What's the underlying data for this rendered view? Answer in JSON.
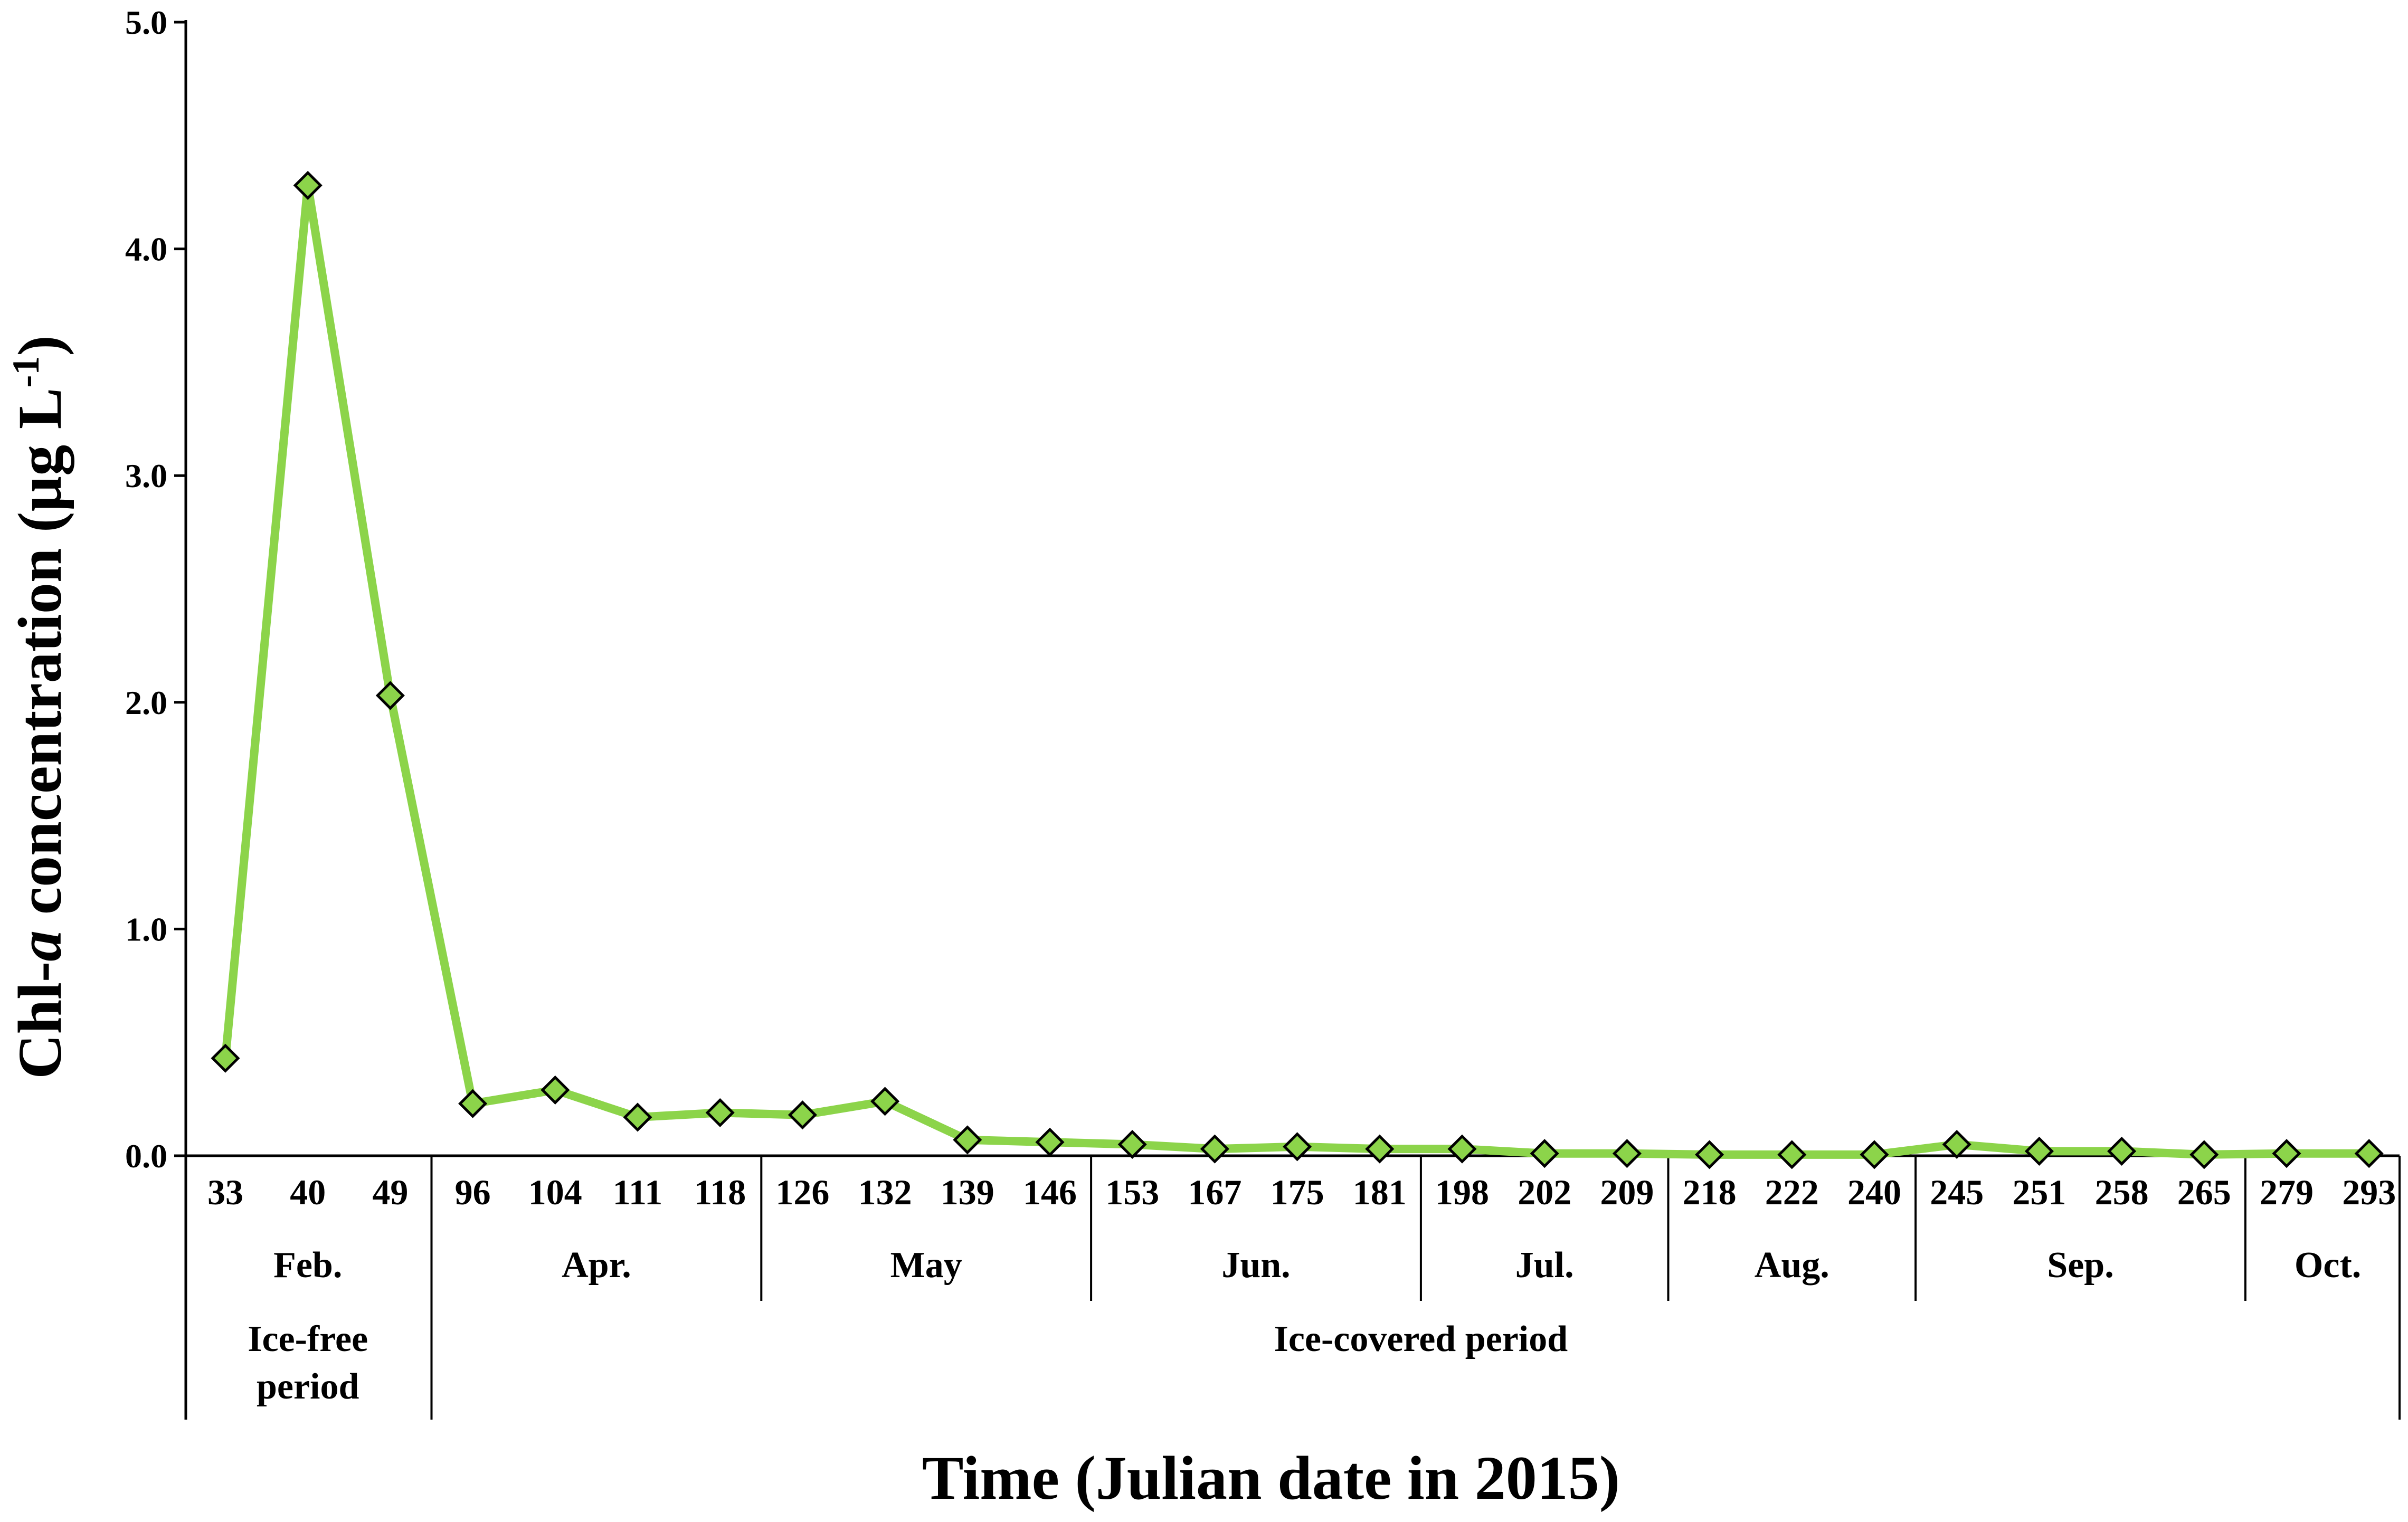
{
  "chart_data": {
    "type": "line",
    "xlabel": "Time (Julian date in 2015)",
    "ylabel": {
      "prefix": "Chl-",
      "italic": "a",
      "middle": " concentration (µg L",
      "superscript": "-1",
      "suffix": ")"
    },
    "ylim": [
      0,
      5.0
    ],
    "yticks": [
      "0.0",
      "1.0",
      "2.0",
      "3.0",
      "4.0",
      "5.0"
    ],
    "grid": false,
    "legend": "none",
    "line_color": "#8cd44a",
    "marker_color": "#8cd44a",
    "marker_edge_color": "#000000",
    "marker": "diamond",
    "categories": [
      "33",
      "40",
      "49",
      "96",
      "104",
      "111",
      "118",
      "126",
      "132",
      "139",
      "146",
      "153",
      "167",
      "175",
      "181",
      "198",
      "202",
      "209",
      "218",
      "222",
      "240",
      "245",
      "251",
      "258",
      "265",
      "279",
      "293"
    ],
    "values": [
      0.43,
      4.28,
      2.03,
      0.23,
      0.29,
      0.17,
      0.19,
      0.18,
      0.24,
      0.07,
      0.06,
      0.05,
      0.03,
      0.04,
      0.03,
      0.03,
      0.01,
      0.01,
      0.005,
      0.005,
      0.005,
      0.05,
      0.02,
      0.02,
      0.005,
      0.01,
      0.01
    ],
    "months": [
      {
        "label": "Feb.",
        "start": 0,
        "end": 2
      },
      {
        "label": "Apr.",
        "start": 3,
        "end": 6
      },
      {
        "label": "May",
        "start": 7,
        "end": 10
      },
      {
        "label": "Jun.",
        "start": 11,
        "end": 14
      },
      {
        "label": "Jul.",
        "start": 15,
        "end": 17
      },
      {
        "label": "Aug.",
        "start": 18,
        "end": 20
      },
      {
        "label": "Sep.",
        "start": 21,
        "end": 24
      },
      {
        "label": "Oct.",
        "start": 25,
        "end": 26
      }
    ],
    "periods": [
      {
        "lines": [
          "Ice-free",
          "period"
        ],
        "start": 0,
        "end": 2
      },
      {
        "lines": [
          "Ice-covered period"
        ],
        "start": 3,
        "end": 26
      }
    ]
  }
}
